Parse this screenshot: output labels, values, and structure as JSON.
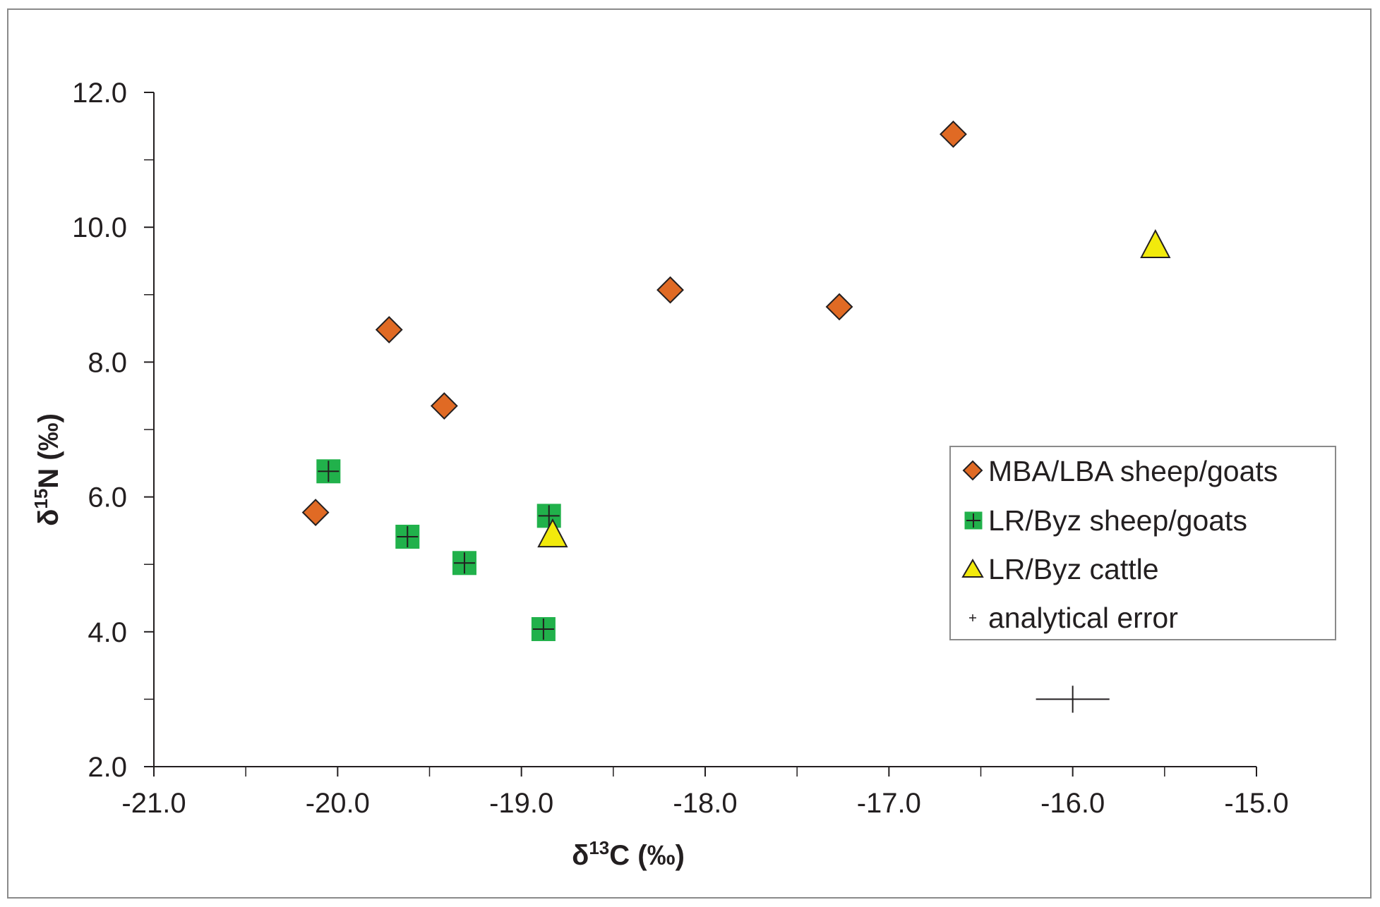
{
  "chart_data": {
    "type": "scatter",
    "xlim": [
      -21.0,
      -15.0
    ],
    "ylim": [
      2.0,
      12.0
    ],
    "x_ticks": [
      "-21.0",
      "-20.0",
      "-19.0",
      "-18.0",
      "-17.0",
      "-16.0",
      "-15.0"
    ],
    "y_ticks": [
      "2.0",
      "4.0",
      "6.0",
      "8.0",
      "10.0",
      "12.0"
    ],
    "xlabel": {
      "prefix": "δ",
      "sup": "13",
      "suffix": "C (‰)"
    },
    "ylabel": {
      "prefix": "δ",
      "sup": "15",
      "suffix": "N (‰)"
    },
    "grid": false,
    "legend_position": "right",
    "series": [
      {
        "name": "MBA/LBA sheep/goats",
        "marker": "diamond",
        "color": "#e06a24",
        "points": [
          [
            -20.12,
            5.77
          ],
          [
            -19.72,
            8.48
          ],
          [
            -19.42,
            7.35
          ],
          [
            -18.19,
            9.07
          ],
          [
            -17.27,
            8.82
          ],
          [
            -16.65,
            11.38
          ]
        ]
      },
      {
        "name": "LR/Byz sheep/goats",
        "marker": "square-cross",
        "color": "#21b14b",
        "points": [
          [
            -20.05,
            6.38
          ],
          [
            -19.62,
            5.41
          ],
          [
            -19.31,
            5.02
          ],
          [
            -18.85,
            5.72
          ],
          [
            -18.88,
            4.04
          ]
        ]
      },
      {
        "name": "LR/Byz cattle",
        "marker": "triangle",
        "color": "#f2ea0c",
        "points": [
          [
            -18.83,
            5.43
          ],
          [
            -15.55,
            9.72
          ]
        ]
      }
    ],
    "error_bar": {
      "name": "analytical error",
      "x": -16.0,
      "y": 3.0,
      "x_err": 0.2,
      "y_err": 0.2
    }
  }
}
